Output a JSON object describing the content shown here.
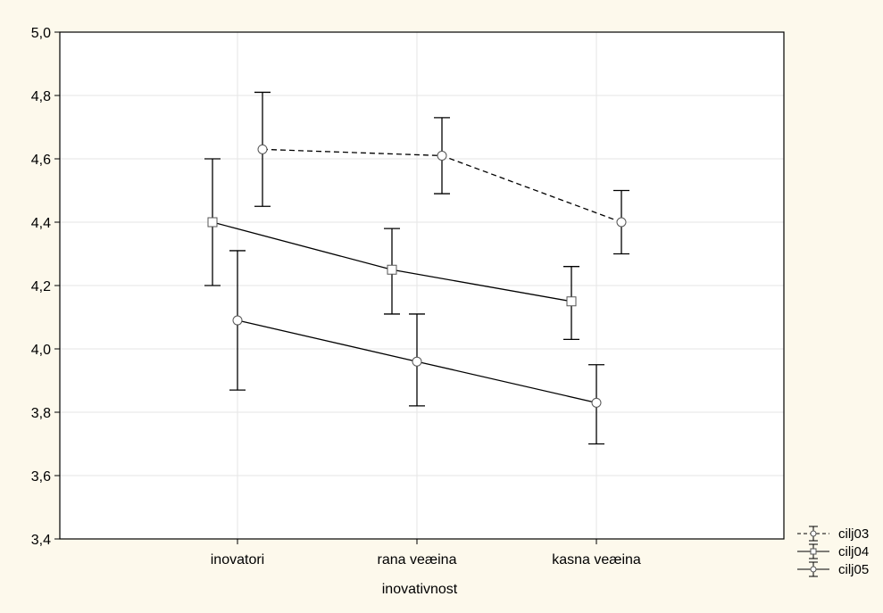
{
  "chart_data": {
    "type": "line",
    "title": "",
    "xlabel": "inovativnost",
    "ylabel": "",
    "categories": [
      "inovatori",
      "rana veæina",
      "kasna veæina"
    ],
    "ylim": [
      3.4,
      5.0
    ],
    "yticks": [
      "3,4",
      "3,6",
      "3,8",
      "4,0",
      "4,2",
      "4,4",
      "4,6",
      "4,8",
      "5,0"
    ],
    "ytick_values": [
      3.4,
      3.6,
      3.8,
      4.0,
      4.2,
      4.4,
      4.6,
      4.8,
      5.0
    ],
    "grid": true,
    "legend_position": "bottom-right",
    "series": [
      {
        "name": "cilj03",
        "marker": "circle",
        "line_style": "dashed",
        "values": [
          4.63,
          4.61,
          4.4
        ],
        "err_low": [
          4.45,
          4.49,
          4.3
        ],
        "err_high": [
          4.81,
          4.73,
          4.5
        ]
      },
      {
        "name": "cilj04",
        "marker": "square",
        "line_style": "solid",
        "values": [
          4.4,
          4.25,
          4.15
        ],
        "err_low": [
          4.2,
          4.11,
          4.03
        ],
        "err_high": [
          4.6,
          4.38,
          4.26
        ]
      },
      {
        "name": "cilj05",
        "marker": "circle",
        "line_style": "solid",
        "values": [
          4.09,
          3.96,
          3.83
        ],
        "err_low": [
          3.87,
          3.82,
          3.7
        ],
        "err_high": [
          4.31,
          4.11,
          3.95
        ]
      }
    ],
    "colors": {
      "background": "#fdf9ec",
      "plot": "#ffffff",
      "grid": "#e6e6e6",
      "line": "#000000"
    }
  }
}
